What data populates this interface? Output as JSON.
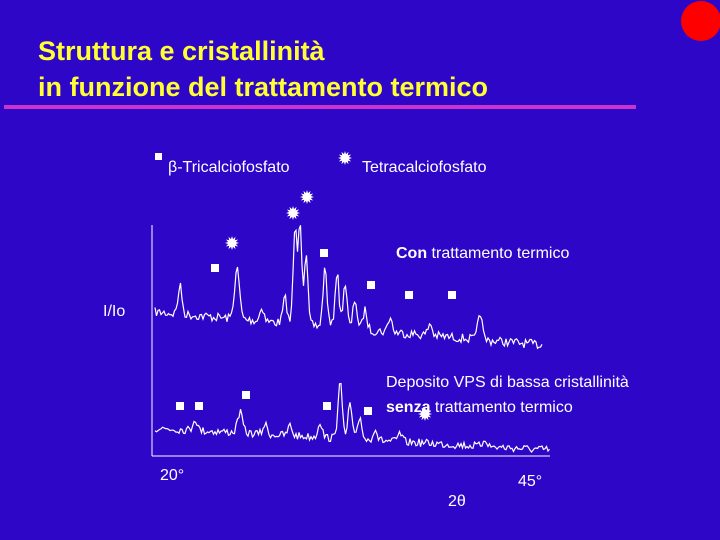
{
  "header": {
    "title_line1": "Struttura e cristallinità",
    "title_line2": "in funzione del trattamento termico"
  },
  "legend": {
    "items": [
      {
        "label": "β-Tricalciofosfato"
      },
      {
        "label": "Tetracalciofosfato"
      }
    ]
  },
  "axes": {
    "y_label": "I/Io",
    "x_start": "20°",
    "x_end": "45°",
    "x_label": "2θ"
  },
  "curves": [
    {
      "label_bold": "Con",
      "label_rest": " trattamento termico"
    },
    {
      "label_line1": "Deposito VPS di bassa cristallinità",
      "label_bold": "senza",
      "label_rest": " trattamento termico"
    }
  ]
}
